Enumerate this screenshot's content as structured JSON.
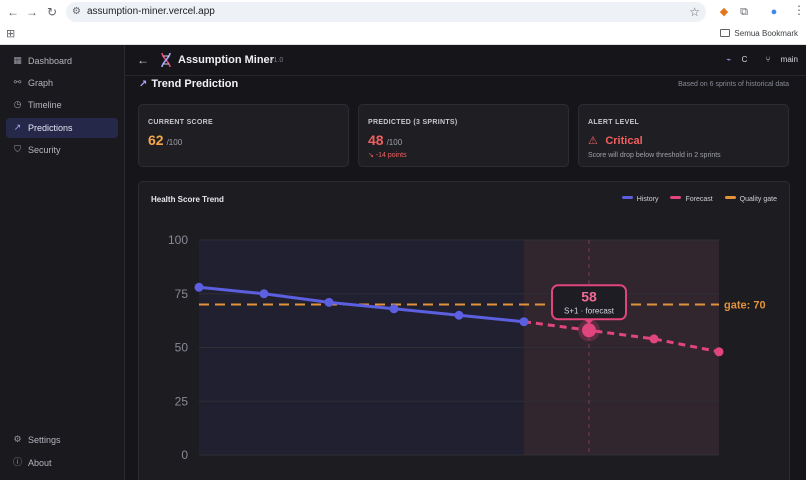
{
  "browser": {
    "url": "assumption-miner.vercel.app",
    "bookmark_label": "Semua Bookmark"
  },
  "sidebar": {
    "items": [
      {
        "label": "Dashboard",
        "icon": "grid-icon",
        "active": false
      },
      {
        "label": "Graph",
        "icon": "graph-icon",
        "active": false
      },
      {
        "label": "Timeline",
        "icon": "clock-icon",
        "active": false
      },
      {
        "label": "Predictions",
        "icon": "trend-icon",
        "active": true
      },
      {
        "label": "Security",
        "icon": "shield-icon",
        "active": false
      }
    ],
    "bottom_items": [
      {
        "label": "Settings",
        "icon": "gear-icon"
      },
      {
        "label": "About",
        "icon": "info-icon"
      }
    ]
  },
  "header": {
    "title": "Assumption Miner",
    "version": "v1.0",
    "status_label": "C",
    "branch": "main"
  },
  "page": {
    "title": "Trend Prediction",
    "subtitle": "Based on 6 sprints of historical data"
  },
  "cards": {
    "current": {
      "label": "CURRENT SCORE",
      "value": "62",
      "unit": "/100"
    },
    "predicted": {
      "label": "PREDICTED (3 SPRINTS)",
      "value": "48",
      "unit": "/100",
      "delta": "-14 points"
    },
    "alert": {
      "label": "ALERT LEVEL",
      "value": "Critical",
      "note": "Score will drop below threshold in 2 sprints"
    }
  },
  "colors": {
    "history": "#5b5fe0",
    "forecast": "#e0457b",
    "gate": "#e2933a",
    "score_orange": "#f4a64a",
    "critical_red": "#f06060"
  },
  "chart_data": {
    "type": "line",
    "title": "Health Score Trend",
    "legend": [
      "History",
      "Forecast",
      "Quality gate"
    ],
    "legend_position": "top-right",
    "ylim": [
      0,
      100
    ],
    "yticks": [
      0,
      25,
      50,
      75,
      100
    ],
    "grid": true,
    "series": [
      {
        "name": "History",
        "x": [
          0,
          1,
          2,
          3,
          4,
          5
        ],
        "values": [
          78,
          75,
          71,
          68,
          65,
          62
        ]
      },
      {
        "name": "Forecast",
        "x": [
          5,
          6,
          7,
          8
        ],
        "values": [
          62,
          58,
          54,
          48
        ]
      }
    ],
    "gate": {
      "value": 70,
      "label": "gate: 70"
    },
    "tooltip": {
      "value": "58",
      "label": "S+1 · forecast",
      "x": 6
    }
  }
}
